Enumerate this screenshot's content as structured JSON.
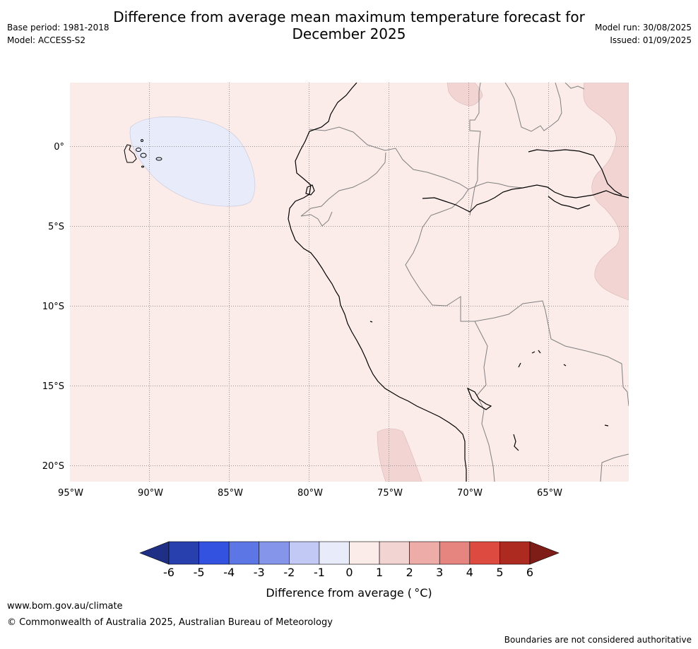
{
  "header": {
    "title_line1": "Difference from average mean maximum temperature forecast for",
    "title_line2": "December 2025",
    "base_period": "Base period: 1981-2018",
    "model": "Model: ACCESS-S2",
    "model_run": "Model run: 30/08/2025",
    "issued": "Issued: 01/09/2025"
  },
  "map": {
    "lat_labels": [
      "0°",
      "5°S",
      "10°S",
      "15°S",
      "20°S"
    ],
    "lon_labels": [
      "95°W",
      "90°W",
      "85°W",
      "80°W",
      "75°W",
      "70°W",
      "65°W"
    ],
    "background_color": "#fbebe9",
    "anomaly_regions": [
      {
        "name": "cool-anomaly-region",
        "category": "-1 to 0",
        "color": "#e8ebfa"
      },
      {
        "name": "warm-anomaly-region-brazil",
        "category": "1 to 2",
        "color": "#f2d5d3"
      },
      {
        "name": "warm-anomaly-region-north",
        "category": "1 to 2",
        "color": "#f2d5d3"
      },
      {
        "name": "warm-anomaly-region-chile",
        "category": "1 to 2",
        "color": "#f2d5d3"
      }
    ]
  },
  "colorbar": {
    "ticks": [
      "-6",
      "-5",
      "-4",
      "-3",
      "-2",
      "-1",
      "0",
      "1",
      "2",
      "3",
      "4",
      "5",
      "6"
    ],
    "colors": [
      "#1e2f85",
      "#283fae",
      "#3352e0",
      "#5c76e6",
      "#8596ea",
      "#c2c9f4",
      "#e8ebfa",
      "#fbebe9",
      "#f2d5d3",
      "#edaca7",
      "#e6857f",
      "#dc4a40",
      "#ad2a21",
      "#7e1d18"
    ],
    "label": "Difference from average ( °C)"
  },
  "footer": {
    "url": "www.bom.gov.au/climate",
    "copyright": "© Commonwealth of Australia 2025, Australian Bureau of Meteorology",
    "note": "Boundaries are not considered authoritative"
  }
}
